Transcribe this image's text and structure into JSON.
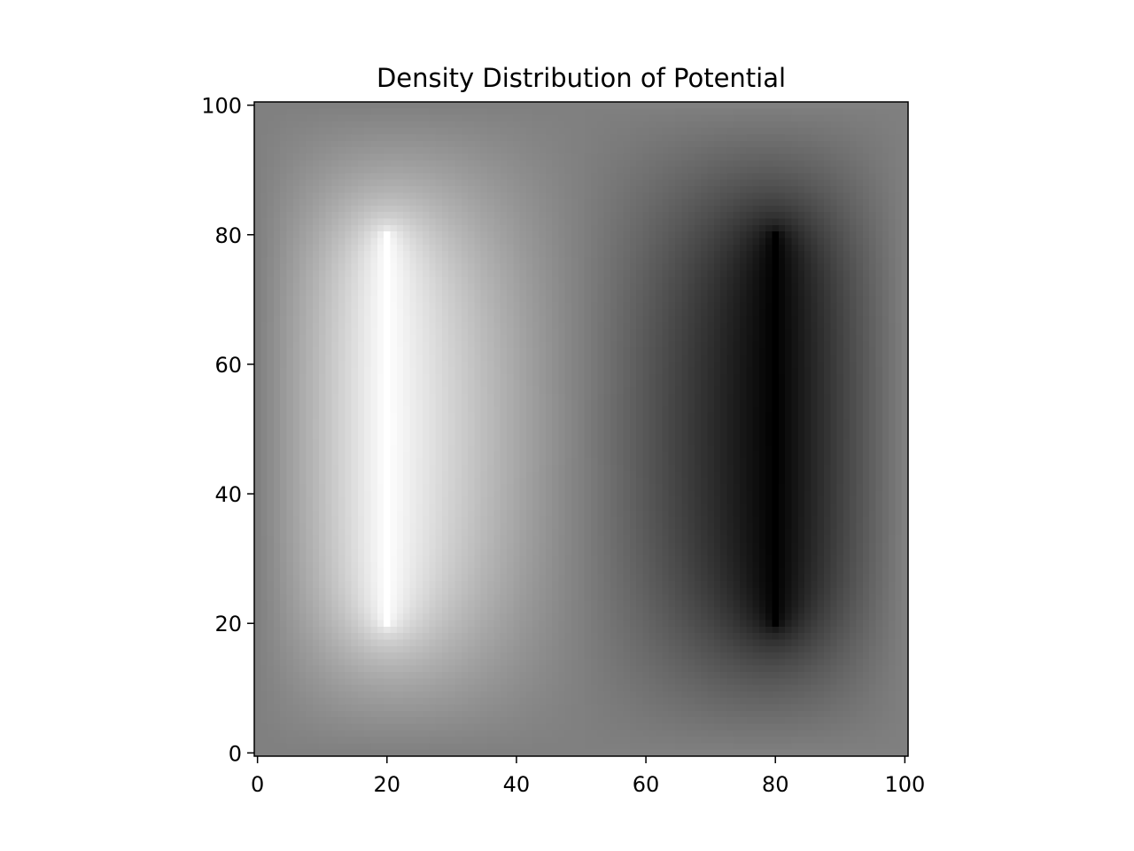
{
  "chart_data": {
    "type": "heatmap",
    "title": "Density Distribution of Potential",
    "xlabel": "",
    "ylabel": "",
    "xlim": [
      0,
      101
    ],
    "ylim": [
      0,
      101
    ],
    "colormap": "gray",
    "grid": false,
    "xticks": [
      0,
      20,
      40,
      60,
      80,
      100
    ],
    "yticks": [
      0,
      20,
      40,
      60,
      80,
      100
    ],
    "grid_size": [
      101,
      101
    ],
    "sources": [
      {
        "name": "positive plate",
        "x": 20,
        "y_start": 20,
        "y_end": 80,
        "value_at_plate": 1.0
      },
      {
        "name": "negative plate",
        "x": 80,
        "y_start": 20,
        "y_end": 80,
        "value_at_plate": -1.0
      }
    ],
    "boundary_value": 0.0,
    "value_range": [
      -1.0,
      1.0
    ]
  }
}
